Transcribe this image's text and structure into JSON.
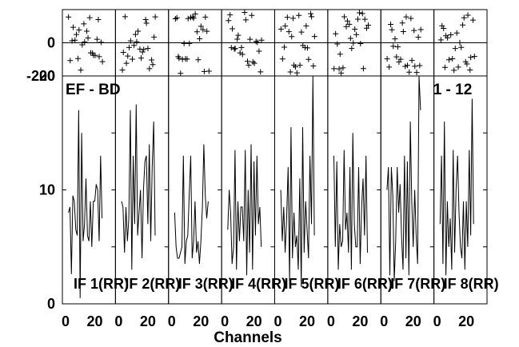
{
  "chart_data": {
    "type": "line",
    "title_left": "EF - BD",
    "title_right": "1 - 12",
    "xlabel": "Channels",
    "x_range": [
      0,
      32
    ],
    "x_tick_labels": [
      "0",
      "20"
    ],
    "y_range": [
      0,
      20
    ],
    "y_tick_labels": [
      "0",
      "10",
      "20"
    ],
    "phase_range": [
      -200,
      200
    ],
    "phase_tick_labels": [
      "-200",
      "0"
    ],
    "panels": [
      {
        "label": "IF 1(RR)",
        "values": [
          8,
          8.5,
          2.6,
          9.5,
          9,
          6.5,
          6,
          17,
          0.5,
          15,
          5.5,
          7,
          11,
          6,
          5.5,
          9,
          5,
          9,
          9,
          10.5,
          10,
          5.5,
          13,
          7.5
        ]
      },
      {
        "label": "IF 2(RR)",
        "values": [
          9,
          8.5,
          4.5,
          8.5,
          5.5,
          7.5,
          17,
          3,
          13,
          7,
          17.5,
          6,
          8,
          10,
          4,
          10,
          12.5,
          13,
          7,
          14,
          5.5,
          12,
          16,
          6
        ]
      },
      {
        "label": "IF 3(RR)",
        "values": [
          8,
          5,
          4,
          4,
          4.5,
          5,
          13,
          3.5,
          5.5,
          6,
          9.5,
          13,
          4,
          5.5,
          9,
          4.5,
          5.5,
          3.5,
          5.5,
          8.5,
          14,
          9.5,
          7.5,
          9
        ]
      },
      {
        "label": "IF 4(RR)",
        "values": [
          6.5,
          10,
          8,
          3.5,
          5,
          13.5,
          3,
          9,
          5.5,
          8.5,
          8.5,
          5.5,
          13.5,
          2.5,
          10,
          4.5,
          14,
          3,
          12.5,
          6,
          13,
          7,
          8.5,
          5
        ]
      },
      {
        "label": "IF 5(RR)",
        "values": [
          10,
          5.5,
          8.5,
          4.5,
          7.5,
          12,
          2,
          15.5,
          4,
          8,
          5,
          6,
          3,
          11,
          1.5,
          15.5,
          4.5,
          9,
          6.5,
          4,
          13,
          7,
          20,
          6
        ]
      },
      {
        "label": "IF 6(RR)",
        "values": [
          13,
          5,
          12.5,
          3,
          7,
          5,
          5.5,
          13.5,
          6.5,
          8,
          4.5,
          12,
          3,
          15,
          7,
          5,
          5,
          12,
          3.5,
          8.5,
          11,
          6,
          13,
          4.5
        ]
      },
      {
        "label": "IF 7(RR)",
        "values": [
          10,
          12,
          2.5,
          12,
          9.5,
          2,
          5.5,
          12,
          8,
          10.5,
          6,
          3,
          13,
          4,
          12.5,
          2.5,
          16,
          9,
          5,
          10,
          6,
          3.5,
          20,
          17
        ]
      },
      {
        "label": "IF 8(RR)",
        "values": [
          7,
          13,
          3.5,
          16,
          2.5,
          9,
          5,
          7.5,
          3,
          13.5,
          4.5,
          10,
          13,
          8,
          5,
          4,
          9,
          3,
          9,
          5,
          13.5,
          6,
          18,
          7
        ]
      }
    ]
  }
}
